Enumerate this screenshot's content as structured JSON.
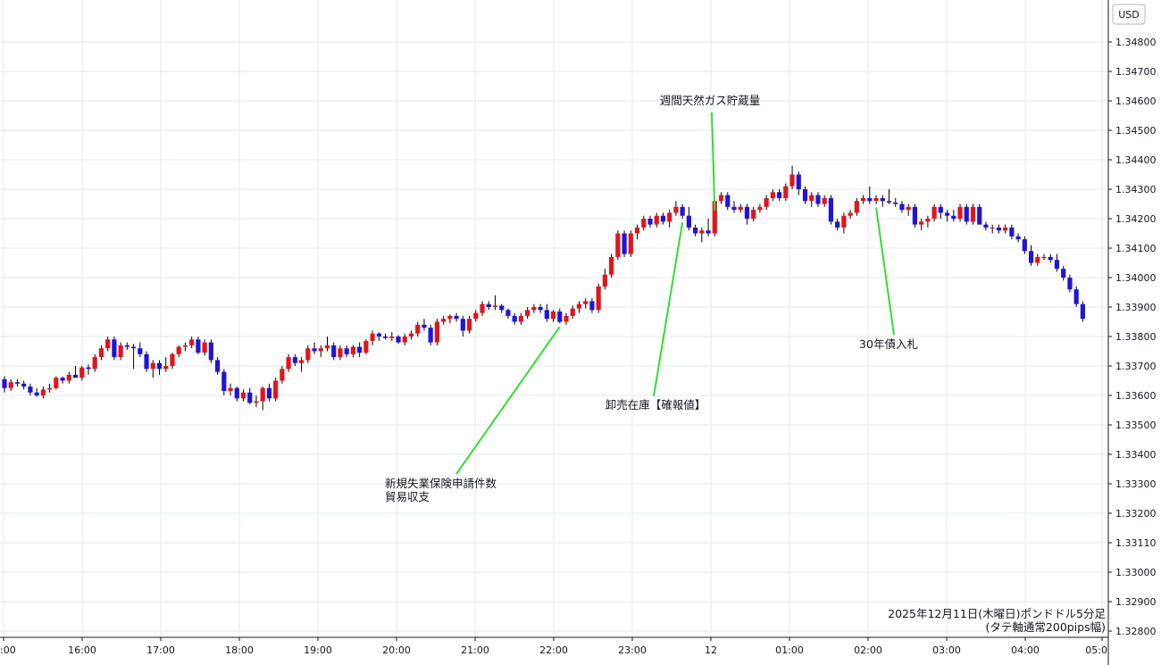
{
  "chart_data": {
    "type": "candlestick",
    "instrument": "ポンドドル",
    "caption_line1": "2025年12月11日(木曜日)ポンドドル5分足",
    "caption_line2": "(タテ軸通常200pips幅)",
    "currency_label": "USD",
    "ylim": [
      1.3275,
      1.349
    ],
    "y_ticks": [
      "1.34800",
      "1.34700",
      "1.34600",
      "1.34500",
      "1.34400",
      "1.34300",
      "1.34200",
      "1.34100",
      "1.34000",
      "1.33900",
      "1.33800",
      "1.33700",
      "1.33600",
      "1.33500",
      "1.33400",
      "1.33300",
      "1.33200",
      "1.33110",
      "1.33000",
      "1.32900",
      "1.32800"
    ],
    "x_ticks": [
      ":00",
      "16:00",
      "17:00",
      "18:00",
      "19:00",
      "20:00",
      "21:00",
      "22:00",
      "23:00",
      "12",
      "01:00",
      "02:00",
      "03:00",
      "04:00",
      "05:0"
    ],
    "grid": true,
    "colors": {
      "up": "#e3141b",
      "down": "#1f14d8",
      "wick": "#000000",
      "leader": "#33dd33",
      "grid": "#e6ebf0",
      "axis": "#131722"
    },
    "candles": [
      [
        1.33655,
        1.33665,
        1.3361,
        1.33625
      ],
      [
        1.33625,
        1.33655,
        1.33615,
        1.33645
      ],
      [
        1.33645,
        1.33655,
        1.3363,
        1.3364
      ],
      [
        1.3364,
        1.3365,
        1.3362,
        1.3363
      ],
      [
        1.3363,
        1.3364,
        1.336,
        1.3361
      ],
      [
        1.3361,
        1.33625,
        1.33595,
        1.336
      ],
      [
        1.336,
        1.3363,
        1.3359,
        1.3362
      ],
      [
        1.3362,
        1.3364,
        1.3361,
        1.33625
      ],
      [
        1.33625,
        1.33665,
        1.3362,
        1.3366
      ],
      [
        1.3366,
        1.33665,
        1.3364,
        1.3365
      ],
      [
        1.3365,
        1.3368,
        1.3364,
        1.3367
      ],
      [
        1.3367,
        1.337,
        1.3366,
        1.3366
      ],
      [
        1.3366,
        1.337,
        1.3365,
        1.33695
      ],
      [
        1.33695,
        1.33705,
        1.3367,
        1.3369
      ],
      [
        1.3369,
        1.3374,
        1.3368,
        1.3373
      ],
      [
        1.3373,
        1.3377,
        1.3372,
        1.3376
      ],
      [
        1.3376,
        1.338,
        1.3375,
        1.3379
      ],
      [
        1.3379,
        1.338,
        1.3372,
        1.3373
      ],
      [
        1.3373,
        1.3378,
        1.3372,
        1.3377
      ],
      [
        1.3377,
        1.3378,
        1.33755,
        1.33765
      ],
      [
        1.33765,
        1.33775,
        1.3369,
        1.3376
      ],
      [
        1.3376,
        1.3378,
        1.3373,
        1.3374
      ],
      [
        1.3374,
        1.3375,
        1.3368,
        1.3369
      ],
      [
        1.3369,
        1.3372,
        1.3366,
        1.3371
      ],
      [
        1.3371,
        1.3372,
        1.3367,
        1.3369
      ],
      [
        1.3369,
        1.3373,
        1.3368,
        1.337
      ],
      [
        1.337,
        1.33745,
        1.3369,
        1.3374
      ],
      [
        1.3374,
        1.3377,
        1.3373,
        1.33765
      ],
      [
        1.33765,
        1.3378,
        1.3375,
        1.3377
      ],
      [
        1.3377,
        1.338,
        1.3376,
        1.3379
      ],
      [
        1.3379,
        1.338,
        1.3374,
        1.33745
      ],
      [
        1.33745,
        1.3379,
        1.33735,
        1.3378
      ],
      [
        1.3378,
        1.3379,
        1.3371,
        1.3372
      ],
      [
        1.3372,
        1.3373,
        1.3367,
        1.3368
      ],
      [
        1.3368,
        1.3369,
        1.336,
        1.33615
      ],
      [
        1.33615,
        1.3364,
        1.336,
        1.33625
      ],
      [
        1.33625,
        1.3363,
        1.3358,
        1.3359
      ],
      [
        1.3359,
        1.3362,
        1.3358,
        1.3361
      ],
      [
        1.3361,
        1.33625,
        1.3357,
        1.33575
      ],
      [
        1.33575,
        1.336,
        1.3356,
        1.3358
      ],
      [
        1.3358,
        1.3363,
        1.3355,
        1.33625
      ],
      [
        1.33625,
        1.3364,
        1.3358,
        1.3359
      ],
      [
        1.3359,
        1.3366,
        1.3358,
        1.3365
      ],
      [
        1.3365,
        1.337,
        1.3364,
        1.3369
      ],
      [
        1.3369,
        1.3374,
        1.3368,
        1.3373
      ],
      [
        1.3373,
        1.3374,
        1.337,
        1.3371
      ],
      [
        1.3371,
        1.3373,
        1.3368,
        1.3372
      ],
      [
        1.3372,
        1.3377,
        1.3371,
        1.3376
      ],
      [
        1.3376,
        1.3378,
        1.3374,
        1.3375
      ],
      [
        1.3375,
        1.3377,
        1.3373,
        1.3376
      ],
      [
        1.3376,
        1.338,
        1.3375,
        1.3377
      ],
      [
        1.3377,
        1.3378,
        1.3372,
        1.3373
      ],
      [
        1.3373,
        1.3377,
        1.3372,
        1.3376
      ],
      [
        1.3376,
        1.3377,
        1.3373,
        1.3374
      ],
      [
        1.3374,
        1.3377,
        1.3373,
        1.33765
      ],
      [
        1.33765,
        1.3378,
        1.3373,
        1.33745
      ],
      [
        1.33745,
        1.3379,
        1.3374,
        1.33785
      ],
      [
        1.33785,
        1.3382,
        1.3377,
        1.3381
      ],
      [
        1.3381,
        1.33815,
        1.33785,
        1.338
      ],
      [
        1.338,
        1.3381,
        1.3379,
        1.33795
      ],
      [
        1.33795,
        1.33815,
        1.33785,
        1.338
      ],
      [
        1.338,
        1.33805,
        1.33775,
        1.3378
      ],
      [
        1.3378,
        1.3381,
        1.3377,
        1.338
      ],
      [
        1.338,
        1.3382,
        1.3379,
        1.3381
      ],
      [
        1.3381,
        1.3385,
        1.338,
        1.3384
      ],
      [
        1.3384,
        1.3386,
        1.3382,
        1.3383
      ],
      [
        1.3383,
        1.3384,
        1.3377,
        1.3378
      ],
      [
        1.3378,
        1.3386,
        1.3377,
        1.3385
      ],
      [
        1.3385,
        1.3387,
        1.3384,
        1.3386
      ],
      [
        1.3386,
        1.33875,
        1.33845,
        1.3387
      ],
      [
        1.3387,
        1.3388,
        1.3385,
        1.3386
      ],
      [
        1.3386,
        1.3387,
        1.338,
        1.3382
      ],
      [
        1.3382,
        1.3387,
        1.3381,
        1.3386
      ],
      [
        1.3386,
        1.3389,
        1.3385,
        1.3388
      ],
      [
        1.3388,
        1.3392,
        1.3387,
        1.3391
      ],
      [
        1.3391,
        1.3392,
        1.3389,
        1.339
      ],
      [
        1.339,
        1.3394,
        1.3389,
        1.33905
      ],
      [
        1.33905,
        1.3391,
        1.3388,
        1.3389
      ],
      [
        1.3389,
        1.33895,
        1.3386,
        1.3387
      ],
      [
        1.3387,
        1.3388,
        1.3384,
        1.3385
      ],
      [
        1.3385,
        1.3388,
        1.3384,
        1.3387
      ],
      [
        1.3387,
        1.339,
        1.3386,
        1.3389
      ],
      [
        1.3389,
        1.3391,
        1.3388,
        1.339
      ],
      [
        1.339,
        1.3391,
        1.3388,
        1.3389
      ],
      [
        1.3389,
        1.3391,
        1.3385,
        1.3386
      ],
      [
        1.3386,
        1.3389,
        1.3385,
        1.33885
      ],
      [
        1.33885,
        1.33895,
        1.33845,
        1.3385
      ],
      [
        1.3385,
        1.3388,
        1.3384,
        1.3387
      ],
      [
        1.3387,
        1.33905,
        1.3386,
        1.33895
      ],
      [
        1.33895,
        1.3392,
        1.3388,
        1.3391
      ],
      [
        1.3391,
        1.3393,
        1.33895,
        1.3392
      ],
      [
        1.3392,
        1.3393,
        1.3388,
        1.3389
      ],
      [
        1.3389,
        1.3398,
        1.3388,
        1.3397
      ],
      [
        1.3397,
        1.3403,
        1.3396,
        1.3401
      ],
      [
        1.3401,
        1.3408,
        1.34,
        1.3407
      ],
      [
        1.3407,
        1.3416,
        1.3406,
        1.3415
      ],
      [
        1.3415,
        1.3416,
        1.3407,
        1.3408
      ],
      [
        1.3408,
        1.3416,
        1.3407,
        1.3415
      ],
      [
        1.3415,
        1.3418,
        1.3413,
        1.3417
      ],
      [
        1.3417,
        1.3421,
        1.3416,
        1.342
      ],
      [
        1.342,
        1.3421,
        1.3417,
        1.3418
      ],
      [
        1.3418,
        1.3422,
        1.3417,
        1.3421
      ],
      [
        1.3421,
        1.3422,
        1.3418,
        1.3419
      ],
      [
        1.3419,
        1.3423,
        1.3417,
        1.3422
      ],
      [
        1.3422,
        1.3426,
        1.3421,
        1.3424
      ],
      [
        1.3424,
        1.3425,
        1.342,
        1.3421
      ],
      [
        1.3421,
        1.3424,
        1.3416,
        1.3417
      ],
      [
        1.3417,
        1.3418,
        1.3414,
        1.3415
      ],
      [
        1.3415,
        1.3417,
        1.3412,
        1.3416
      ],
      [
        1.3416,
        1.342,
        1.3414,
        1.3415
      ],
      [
        1.3415,
        1.3427,
        1.3414,
        1.3426
      ],
      [
        1.3426,
        1.3429,
        1.3425,
        1.3428
      ],
      [
        1.3428,
        1.3429,
        1.3423,
        1.3424
      ],
      [
        1.3424,
        1.3426,
        1.3422,
        1.3423
      ],
      [
        1.3423,
        1.3425,
        1.3422,
        1.3424
      ],
      [
        1.3424,
        1.3425,
        1.3418,
        1.342
      ],
      [
        1.342,
        1.3424,
        1.3419,
        1.3423
      ],
      [
        1.3423,
        1.3425,
        1.3422,
        1.3424
      ],
      [
        1.3424,
        1.3428,
        1.3423,
        1.3427
      ],
      [
        1.3427,
        1.343,
        1.3426,
        1.3429
      ],
      [
        1.3429,
        1.343,
        1.3426,
        1.3427
      ],
      [
        1.3427,
        1.3432,
        1.3426,
        1.3431
      ],
      [
        1.3431,
        1.3438,
        1.343,
        1.3435
      ],
      [
        1.3435,
        1.3436,
        1.3428,
        1.343
      ],
      [
        1.343,
        1.3431,
        1.3425,
        1.3426
      ],
      [
        1.3426,
        1.3429,
        1.3424,
        1.3428
      ],
      [
        1.3428,
        1.3429,
        1.3424,
        1.3425
      ],
      [
        1.3425,
        1.3428,
        1.3424,
        1.3427
      ],
      [
        1.3427,
        1.3428,
        1.3418,
        1.3419
      ],
      [
        1.3419,
        1.342,
        1.3416,
        1.3417
      ],
      [
        1.3417,
        1.3422,
        1.3415,
        1.3421
      ],
      [
        1.3421,
        1.3423,
        1.342,
        1.3422
      ],
      [
        1.3422,
        1.3427,
        1.3421,
        1.3426
      ],
      [
        1.3426,
        1.3428,
        1.3425,
        1.3427
      ],
      [
        1.3427,
        1.3431,
        1.3425,
        1.3426
      ],
      [
        1.3426,
        1.3428,
        1.3425,
        1.3427
      ],
      [
        1.3427,
        1.3428,
        1.3424,
        1.3426
      ],
      [
        1.3426,
        1.343,
        1.3425,
        1.34255
      ],
      [
        1.34255,
        1.3427,
        1.3424,
        1.3425
      ],
      [
        1.3425,
        1.3426,
        1.3422,
        1.3423
      ],
      [
        1.3423,
        1.3425,
        1.3421,
        1.3424
      ],
      [
        1.3424,
        1.3425,
        1.3417,
        1.3418
      ],
      [
        1.3418,
        1.342,
        1.3416,
        1.3419
      ],
      [
        1.3419,
        1.3421,
        1.3417,
        1.342
      ],
      [
        1.342,
        1.3425,
        1.3419,
        1.3424
      ],
      [
        1.3424,
        1.3425,
        1.342,
        1.3422
      ],
      [
        1.3422,
        1.3423,
        1.3419,
        1.3421
      ],
      [
        1.3421,
        1.3423,
        1.3419,
        1.342
      ],
      [
        1.342,
        1.3425,
        1.3419,
        1.3424
      ],
      [
        1.3424,
        1.3425,
        1.3418,
        1.3419
      ],
      [
        1.3419,
        1.3425,
        1.3418,
        1.3424
      ],
      [
        1.3424,
        1.3425,
        1.3418,
        1.3418
      ],
      [
        1.3418,
        1.3419,
        1.3416,
        1.3417
      ],
      [
        1.3417,
        1.3418,
        1.3415,
        1.3417
      ],
      [
        1.3417,
        1.3418,
        1.3415,
        1.3416
      ],
      [
        1.3416,
        1.3418,
        1.3415,
        1.3417
      ],
      [
        1.3417,
        1.3418,
        1.3413,
        1.3414
      ],
      [
        1.3414,
        1.3415,
        1.3412,
        1.3413
      ],
      [
        1.3413,
        1.3414,
        1.3408,
        1.3409
      ],
      [
        1.3409,
        1.3411,
        1.3404,
        1.3405
      ],
      [
        1.3405,
        1.3408,
        1.3404,
        1.3407
      ],
      [
        1.3407,
        1.3408,
        1.3406,
        1.3407
      ],
      [
        1.3407,
        1.3408,
        1.3405,
        1.3406
      ],
      [
        1.3406,
        1.3408,
        1.3402,
        1.3403
      ],
      [
        1.3403,
        1.3404,
        1.3399,
        1.34
      ],
      [
        1.34,
        1.3401,
        1.3395,
        1.3396
      ],
      [
        1.3396,
        1.3397,
        1.339,
        1.3391
      ],
      [
        1.3391,
        1.3392,
        1.3385,
        1.3386
      ]
    ],
    "annotations": [
      {
        "text": "週間天然ガス貯蔵量",
        "candle": 110
      },
      {
        "text": "卸売在庫【確報値】",
        "candle": 105
      },
      {
        "text": "新規失業保険申請件数",
        "text2": "貿易収支",
        "candle": 86
      },
      {
        "text": "30年債入札",
        "candle": 135
      }
    ]
  }
}
